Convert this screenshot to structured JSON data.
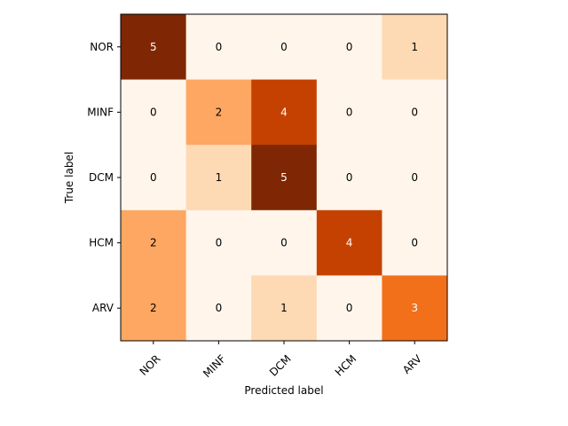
{
  "chart_data": {
    "type": "heatmap",
    "title": "",
    "xlabel": "Predicted label",
    "ylabel": "True label",
    "x_categories": [
      "NOR",
      "MINF",
      "DCM",
      "HCM",
      "ARV"
    ],
    "y_categories": [
      "NOR",
      "MINF",
      "DCM",
      "HCM",
      "ARV"
    ],
    "values": [
      [
        5,
        0,
        0,
        0,
        1
      ],
      [
        0,
        2,
        4,
        0,
        0
      ],
      [
        0,
        1,
        5,
        0,
        0
      ],
      [
        2,
        0,
        0,
        4,
        0
      ],
      [
        2,
        0,
        1,
        0,
        3
      ]
    ],
    "value_range": [
      0,
      5
    ],
    "colormap": "Oranges",
    "grid": false,
    "legend": "none"
  }
}
